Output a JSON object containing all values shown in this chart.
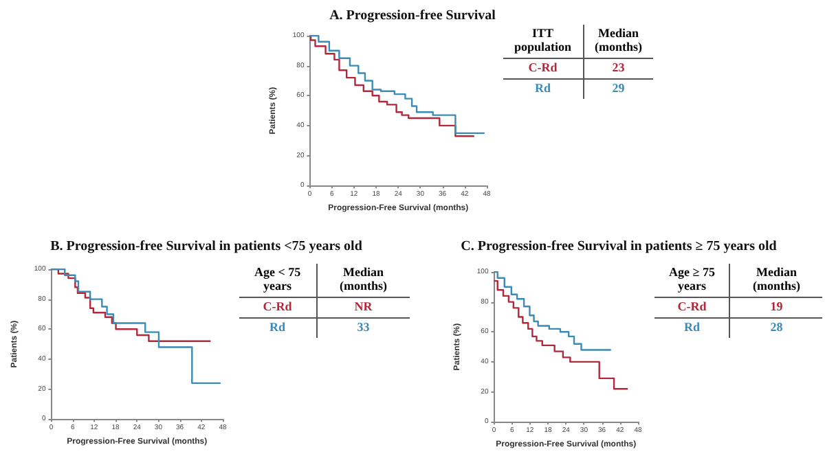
{
  "chart_data": [
    {
      "type": "step",
      "title": "A. Progression-free Survival",
      "xlabel": "Progression-Free Survival (months)",
      "ylabel": "Patients (%)",
      "xlim": [
        0,
        48
      ],
      "xticks": [
        0,
        6,
        12,
        18,
        24,
        30,
        36,
        42,
        48
      ],
      "ylim": [
        0,
        100
      ],
      "yticks": [
        0,
        20,
        40,
        60,
        80,
        100
      ],
      "grid": false,
      "legend": false,
      "marker": "none",
      "line_style": "solid",
      "annotations": [
        "ITT population",
        "Median (months)",
        "23",
        "29"
      ],
      "series": [
        {
          "name": "C-Rd",
          "color": "#b2283a",
          "x": [
            0,
            0.3,
            1.5,
            4.3,
            6.7,
            8,
            10,
            12.3,
            14.6,
            17,
            18.8,
            21,
            23.5,
            25,
            26.8,
            35.2,
            39.5,
            44.6
          ],
          "values": [
            100,
            97,
            93,
            88,
            84,
            77,
            72,
            67,
            63,
            60,
            56,
            54,
            49,
            47,
            45,
            40,
            33,
            33
          ]
        },
        {
          "name": "Rd",
          "color": "#3a8bb5",
          "x": [
            0,
            2.4,
            5.3,
            8,
            10.9,
            13.2,
            15,
            17,
            19.3,
            23,
            25.9,
            27.7,
            29,
            33.4,
            39.5,
            47.4
          ],
          "values": [
            100,
            96,
            90,
            85,
            80,
            75,
            70,
            64,
            63,
            61,
            58,
            53,
            49,
            47,
            35,
            35
          ]
        }
      ]
    },
    {
      "type": "step",
      "title": "B. Progression-free Survival in patients <75 years old",
      "xlabel": "Progression-Free Survival (months)",
      "ylabel": "Patients (%)",
      "xlim": [
        0,
        48
      ],
      "xticks": [
        0,
        6,
        12,
        18,
        24,
        30,
        36,
        42,
        48
      ],
      "ylim": [
        0,
        100
      ],
      "yticks": [
        0,
        20,
        40,
        60,
        80,
        100
      ],
      "grid": false,
      "legend": false,
      "marker": "none",
      "line_style": "solid",
      "annotations": [
        "Age < 75 years",
        "Median (months)",
        "NR",
        "33"
      ],
      "series": [
        {
          "name": "C-Rd",
          "color": "#b2283a",
          "x": [
            0,
            2,
            4.8,
            6.7,
            7.4,
            9.5,
            10.9,
            11.8,
            15.1,
            17,
            18.1,
            24,
            27.3,
            44.6
          ],
          "values": [
            100,
            97,
            94,
            88,
            84,
            81,
            74,
            71,
            68,
            64,
            60,
            56,
            52,
            52
          ]
        },
        {
          "name": "Rd",
          "color": "#3a8bb5",
          "x": [
            0,
            3.8,
            6.7,
            7.6,
            10.9,
            14.2,
            15.6,
            17.4,
            26.3,
            30.1,
            39.4,
            47.4
          ],
          "values": [
            100,
            96,
            92,
            85,
            80,
            75,
            70,
            64,
            58,
            48,
            24,
            24
          ]
        }
      ]
    },
    {
      "type": "step",
      "title": "C. Progression-free Survival in patients ≥ 75 years old",
      "xlabel": "Progression-Free Survival (months)",
      "ylabel": "Patients (%)",
      "xlim": [
        0,
        48
      ],
      "xticks": [
        0,
        6,
        12,
        18,
        24,
        30,
        36,
        42,
        48
      ],
      "ylim": [
        0,
        100
      ],
      "yticks": [
        0,
        20,
        40,
        60,
        80,
        100
      ],
      "grid": false,
      "legend": false,
      "marker": "none",
      "line_style": "solid",
      "annotations": [
        "Age ≥ 75 years",
        "Median (months)",
        "19",
        "28"
      ],
      "series": [
        {
          "name": "C-Rd",
          "color": "#b2283a",
          "x": [
            0,
            1.2,
            3.1,
            4.9,
            6.5,
            8.2,
            9.6,
            11.4,
            12.8,
            14.2,
            16.1,
            20.2,
            23,
            25.4,
            35.1,
            40,
            44.6
          ],
          "values": [
            94,
            88,
            84,
            80,
            76,
            70,
            66,
            62,
            57,
            54,
            51,
            47,
            43,
            40,
            29,
            22,
            22
          ]
        },
        {
          "name": "Rd",
          "color": "#3a8bb5",
          "x": [
            0,
            1.2,
            3.5,
            5.8,
            7.7,
            10,
            11.9,
            13.3,
            14.7,
            18.4,
            22.1,
            24.9,
            26.7,
            29.1,
            39
          ],
          "values": [
            100,
            96,
            90,
            85,
            82,
            77,
            71,
            67,
            64,
            62,
            60,
            57,
            52,
            48,
            48
          ]
        }
      ]
    }
  ]
}
